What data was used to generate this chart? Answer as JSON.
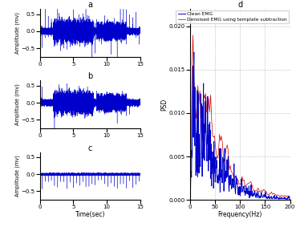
{
  "title_a": "a",
  "title_b": "b",
  "title_c": "c",
  "title_d": "d",
  "xlabel_time": "Time(sec)",
  "xlabel_freq": "Frequency(Hz)",
  "ylabel_amp": "Amplitude (mv)",
  "ylabel_psd": "PSD",
  "legend_clean": "Clean EMG",
  "legend_denoised": "Denoised EMG using template subtraction",
  "time_xlim": [
    0,
    15
  ],
  "time_ylim": [
    -0.75,
    0.65
  ],
  "freq_xlim": [
    0,
    200
  ],
  "freq_ylim": [
    0,
    0.022
  ],
  "time_xticks": [
    0,
    5,
    10,
    15
  ],
  "time_yticks": [
    -0.5,
    0,
    0.5
  ],
  "freq_xticks": [
    0,
    50,
    100,
    150,
    200
  ],
  "freq_yticks": [
    0,
    0.005,
    0.01,
    0.015,
    0.02
  ],
  "signal_color": "#0000CC",
  "clean_color": "#0000CC",
  "denoised_color": "#CC0000",
  "fs": 1000,
  "duration": 15,
  "seed": 42
}
